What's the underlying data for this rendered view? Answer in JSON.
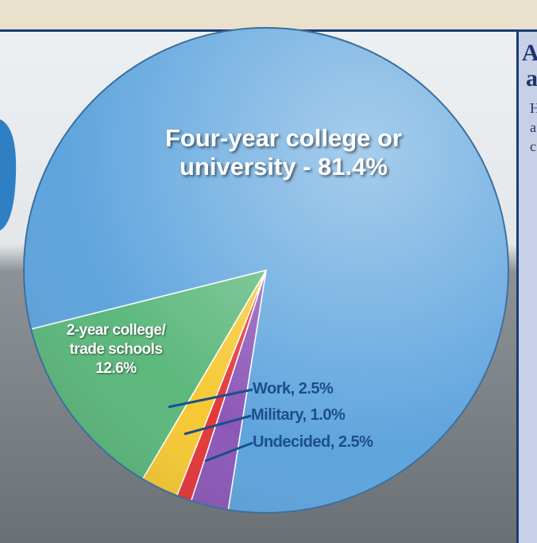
{
  "chart_data": {
    "type": "pie",
    "categories": [
      "Four-year college or university",
      "2-year college/ trade schools",
      "Work",
      "Military",
      "Undecided"
    ],
    "values": [
      81.4,
      12.6,
      2.5,
      1.0,
      2.5
    ],
    "value_labels": [
      "Four-year college or university - 81.4%",
      "2-year college/ trade schools 12.6%",
      "Work, 2.5%",
      "Military, 1.0%",
      "Undecided, 2.5%"
    ],
    "colors": [
      "#5ea4dd",
      "#5cb87c",
      "#f6c933",
      "#e2383b",
      "#8c58b8"
    ]
  },
  "sidebar": {
    "heading": [
      "A",
      "a"
    ],
    "body": [
      "H",
      "a",
      "c"
    ]
  }
}
